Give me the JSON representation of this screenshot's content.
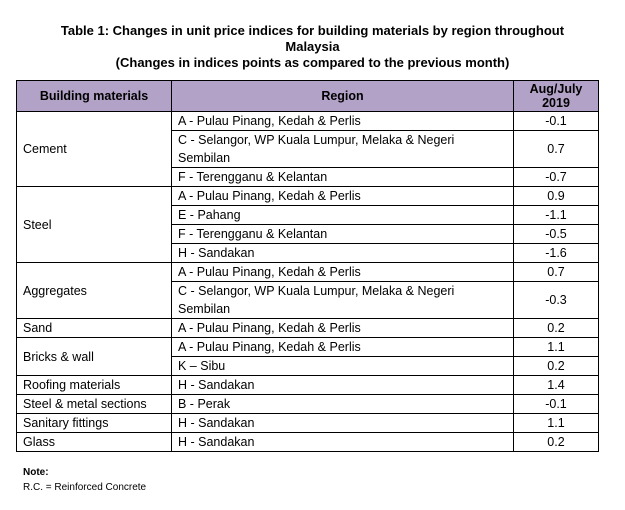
{
  "title": {
    "line1": "Table 1: Changes in unit price indices for building materials by region throughout",
    "line2": "Malaysia",
    "line3": "(Changes in indices points as compared to the previous month)"
  },
  "table": {
    "headers": {
      "material": "Building materials",
      "region": "Region",
      "period": "Aug/July 2019"
    },
    "groups": [
      {
        "material": "Cement",
        "rows": [
          {
            "region": "A - Pulau Pinang, Kedah & Perlis",
            "value": "-0.1"
          },
          {
            "region": "C - Selangor, WP Kuala Lumpur, Melaka & Negeri Sembilan",
            "value": "0.7"
          },
          {
            "region": "F - Terengganu & Kelantan",
            "value": "-0.7"
          }
        ]
      },
      {
        "material": "Steel",
        "rows": [
          {
            "region": "A - Pulau Pinang, Kedah & Perlis",
            "value": "0.9"
          },
          {
            "region": "E - Pahang",
            "value": "-1.1"
          },
          {
            "region": "F - Terengganu & Kelantan",
            "value": "-0.5"
          },
          {
            "region": "H - Sandakan",
            "value": "-1.6"
          }
        ]
      },
      {
        "material": "Aggregates",
        "rows": [
          {
            "region": "A - Pulau Pinang, Kedah & Perlis",
            "value": "0.7"
          },
          {
            "region": "C - Selangor, WP Kuala Lumpur, Melaka & Negeri Sembilan",
            "value": "-0.3"
          }
        ]
      },
      {
        "material": "Sand",
        "rows": [
          {
            "region": "A - Pulau Pinang, Kedah & Perlis",
            "value": "0.2"
          }
        ]
      },
      {
        "material": "Bricks & wall",
        "rows": [
          {
            "region": "A - Pulau Pinang, Kedah & Perlis",
            "value": "1.1"
          },
          {
            "region": "K – Sibu",
            "value": "0.2"
          }
        ]
      },
      {
        "material": "Roofing materials",
        "rows": [
          {
            "region": "H - Sandakan",
            "value": "1.4"
          }
        ]
      },
      {
        "material": "Steel & metal sections",
        "rows": [
          {
            "region": "B - Perak",
            "value": "-0.1"
          }
        ]
      },
      {
        "material": "Sanitary fittings",
        "rows": [
          {
            "region": "H - Sandakan",
            "value": "1.1"
          }
        ]
      },
      {
        "material": "Glass",
        "rows": [
          {
            "region": "H - Sandakan",
            "value": "0.2"
          }
        ]
      }
    ]
  },
  "note": {
    "label": "Note:",
    "text": "R.C. = Reinforced Concrete"
  },
  "colors": {
    "header_bg": "#b3a2c7"
  }
}
